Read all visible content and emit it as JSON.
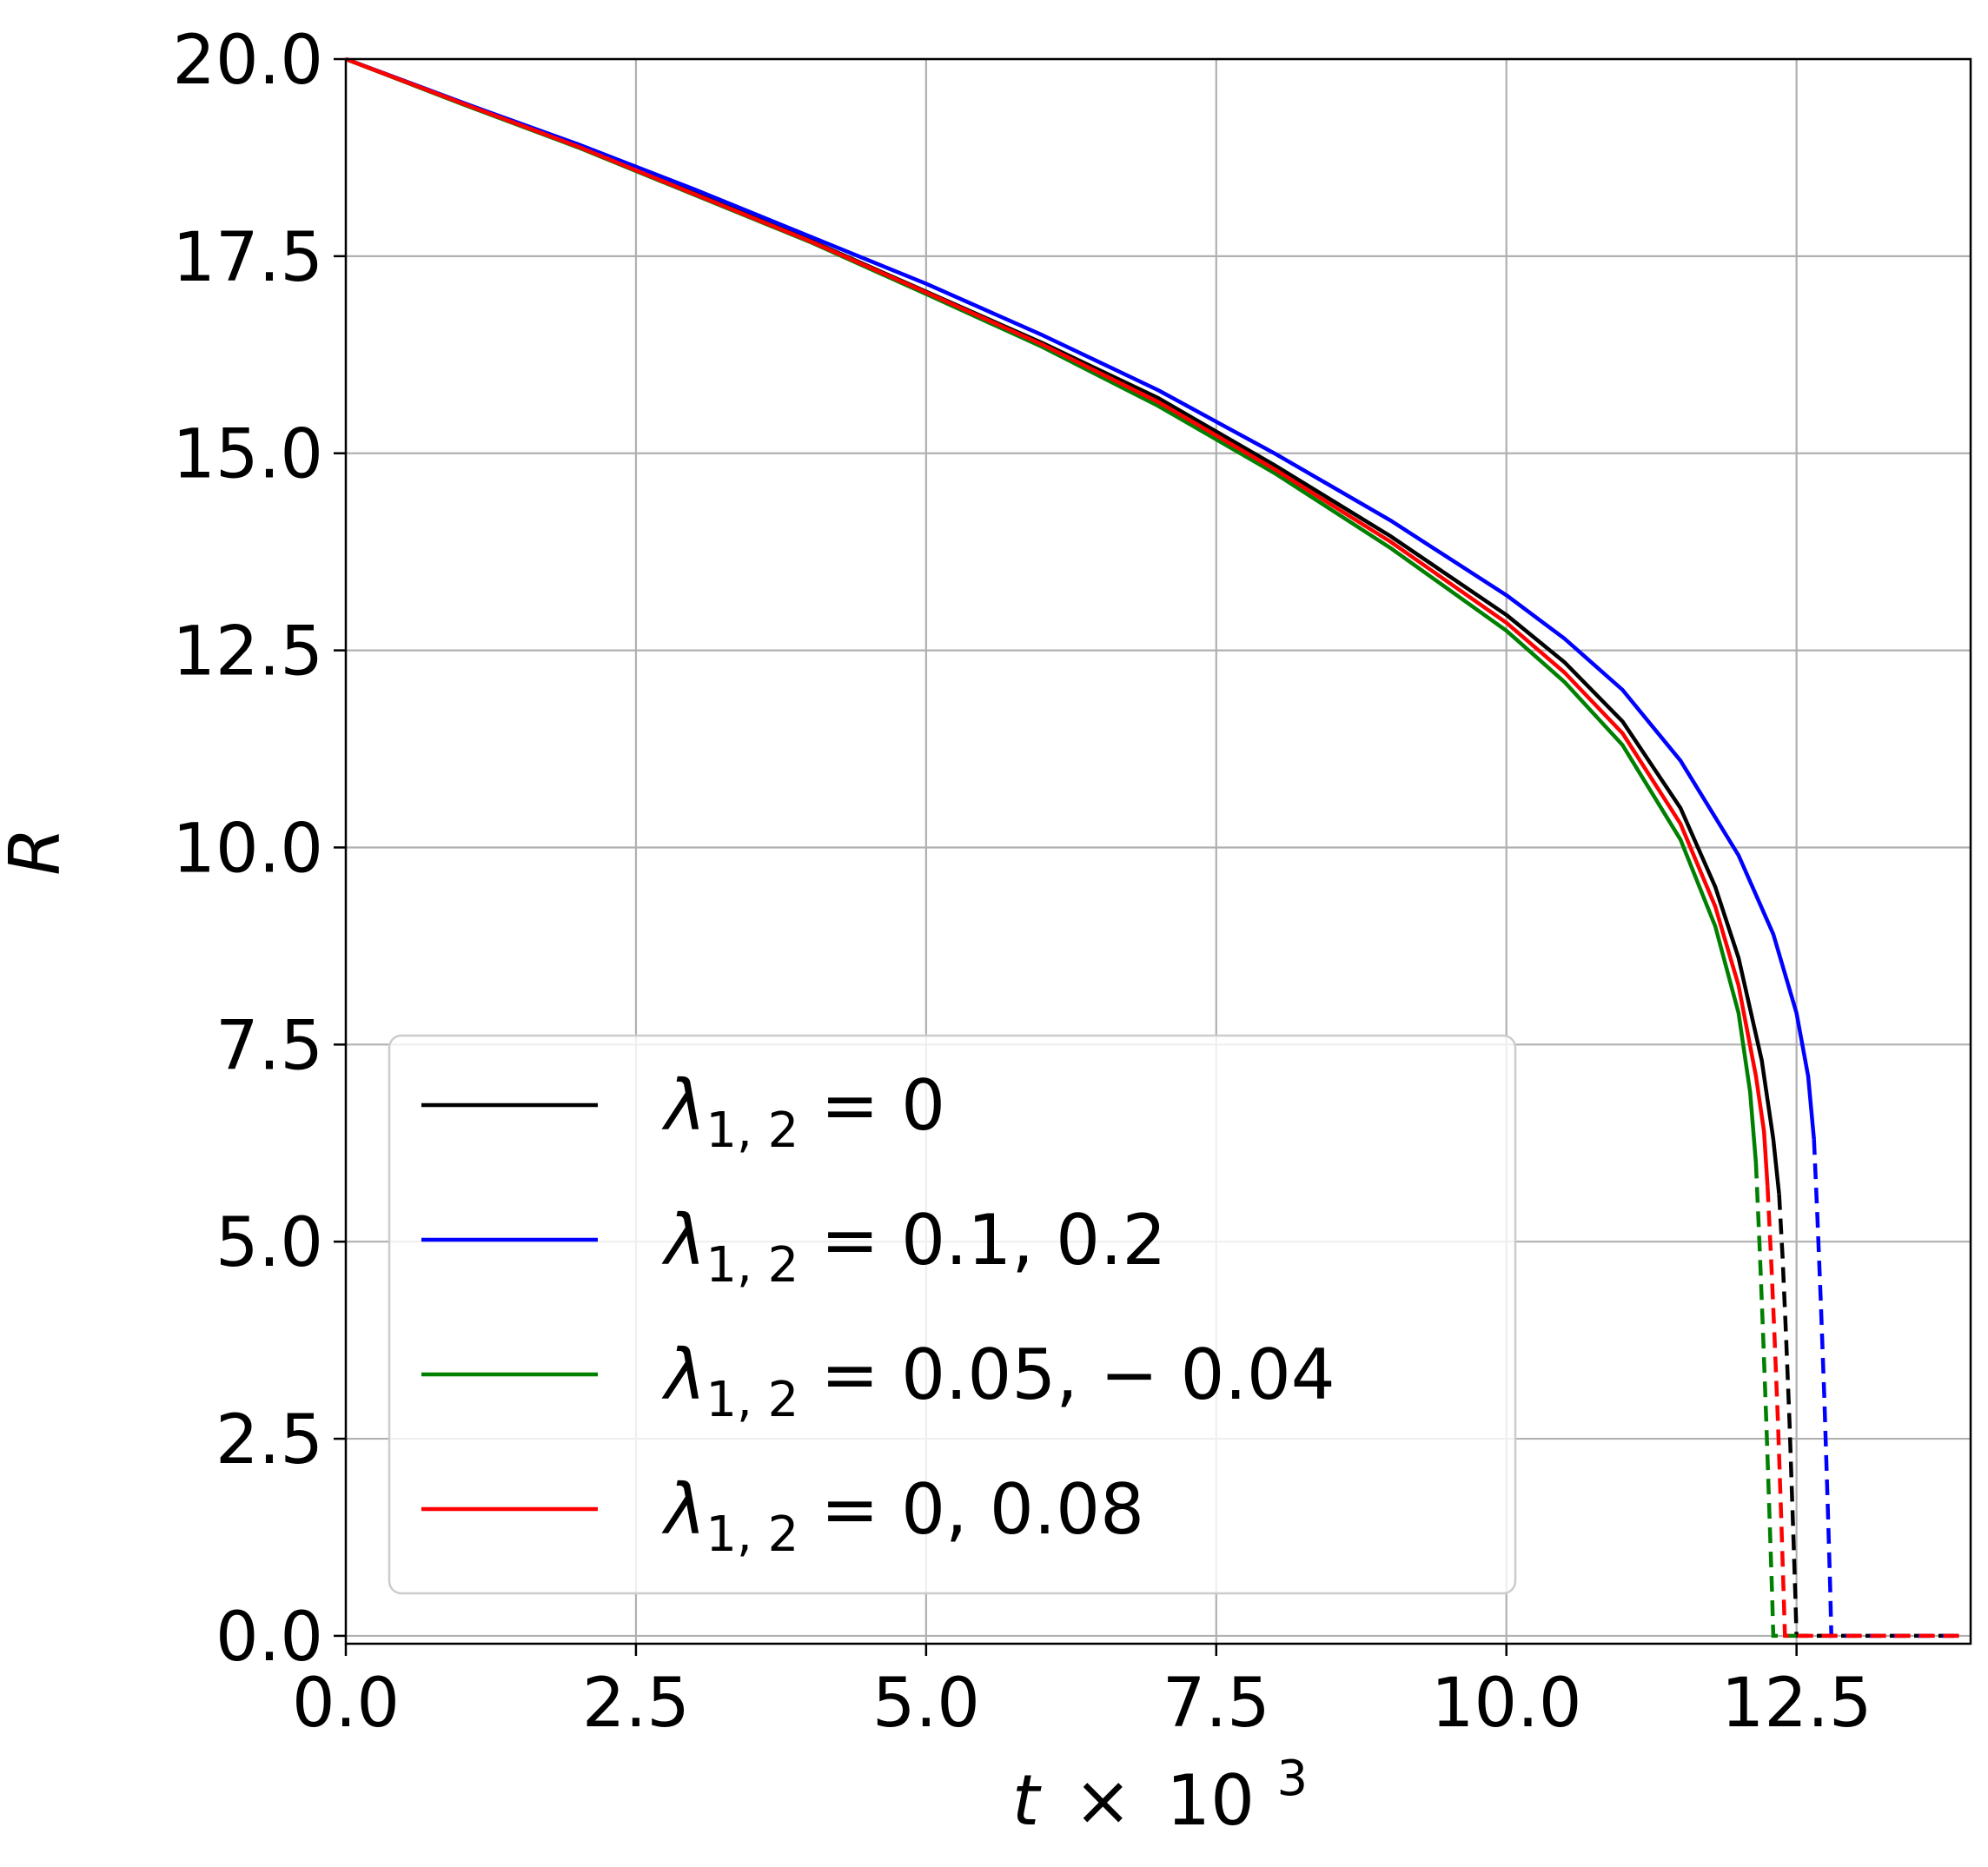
{
  "chart_data": {
    "type": "line",
    "xlabel": {
      "var": "t",
      "op": "×",
      "base": "10",
      "exp": "3"
    },
    "ylabel": "R",
    "xlim": [
      0,
      14
    ],
    "ylim": [
      -0.1,
      20
    ],
    "xticks": [
      "0.0",
      "2.5",
      "5.0",
      "7.5",
      "10.0",
      "12.5"
    ],
    "xtick_values": [
      0,
      2.5,
      5,
      7.5,
      10,
      12.5
    ],
    "yticks": [
      "0.0",
      "2.5",
      "5.0",
      "7.5",
      "10.0",
      "12.5",
      "15.0",
      "17.5",
      "20.0"
    ],
    "ytick_values": [
      0,
      2.5,
      5,
      7.5,
      10,
      12.5,
      15,
      17.5,
      20
    ],
    "grid": true,
    "legend_position": "lower-left",
    "series": [
      {
        "label": {
          "sym": "λ",
          "sub": "1, 2",
          "rhs": " = 0"
        },
        "color": "#000000",
        "solid_x": [
          0,
          1,
          2,
          3,
          4,
          5,
          6,
          7,
          8,
          9,
          10,
          10.5,
          11,
          11.5,
          11.8,
          12.0,
          12.2,
          12.3,
          12.35
        ],
        "solid_y": [
          20,
          19.45,
          18.9,
          18.3,
          17.7,
          17.05,
          16.4,
          15.7,
          14.85,
          13.95,
          12.95,
          12.35,
          11.6,
          10.5,
          9.5,
          8.6,
          7.3,
          6.3,
          5.6
        ],
        "dashed_x": [
          12.35,
          12.38,
          12.41,
          12.44,
          12.47,
          12.49,
          12.5,
          13.9
        ],
        "dashed_y": [
          5.6,
          4.8,
          3.8,
          2.7,
          1.4,
          0.5,
          0,
          0
        ]
      },
      {
        "label": {
          "sym": "λ",
          "sub": "1, 2",
          "rhs": " = 0.1, 0.2"
        },
        "color": "#0000ff",
        "solid_x": [
          0,
          1,
          2,
          3,
          4,
          5,
          6,
          7,
          8,
          9,
          10,
          10.5,
          11,
          11.5,
          12.0,
          12.3,
          12.5,
          12.6,
          12.65
        ],
        "solid_y": [
          20,
          19.45,
          18.92,
          18.35,
          17.75,
          17.15,
          16.5,
          15.8,
          15.0,
          14.15,
          13.2,
          12.65,
          12.0,
          11.1,
          9.9,
          8.9,
          7.9,
          7.1,
          6.3
        ],
        "dashed_x": [
          12.65,
          12.68,
          12.71,
          12.74,
          12.77,
          12.79,
          12.8,
          13.9
        ],
        "dashed_y": [
          6.3,
          5.3,
          4.2,
          3.0,
          1.6,
          0.6,
          0,
          0
        ]
      },
      {
        "label": {
          "sym": "λ",
          "sub": "1, 2",
          "rhs": " = 0.05, − 0.04"
        },
        "color": "#008000",
        "solid_x": [
          0,
          1,
          2,
          3,
          4,
          5,
          6,
          7,
          8,
          9,
          10,
          10.5,
          11,
          11.5,
          11.8,
          12.0,
          12.1,
          12.15
        ],
        "solid_y": [
          20,
          19.43,
          18.88,
          18.28,
          17.68,
          17.02,
          16.35,
          15.6,
          14.75,
          13.8,
          12.75,
          12.1,
          11.3,
          10.1,
          9.0,
          7.9,
          6.9,
          6.0
        ],
        "dashed_x": [
          12.15,
          12.18,
          12.21,
          12.24,
          12.27,
          12.29,
          12.3,
          12.5
        ],
        "dashed_y": [
          6.0,
          5.0,
          3.9,
          2.7,
          1.4,
          0.5,
          0,
          0
        ]
      },
      {
        "label": {
          "sym": "λ",
          "sub": "1, 2",
          "rhs": " = 0, 0.08"
        },
        "color": "#ff0000",
        "solid_x": [
          0,
          1,
          2,
          3,
          4,
          5,
          6,
          7,
          8,
          9,
          10,
          10.5,
          11,
          11.5,
          11.8,
          12.0,
          12.15,
          12.22,
          12.25
        ],
        "solid_y": [
          20,
          19.44,
          18.89,
          18.29,
          17.69,
          17.04,
          16.38,
          15.65,
          14.8,
          13.88,
          12.85,
          12.22,
          11.45,
          10.3,
          9.25,
          8.25,
          7.1,
          6.4,
          5.7
        ],
        "dashed_x": [
          12.25,
          12.28,
          12.31,
          12.34,
          12.37,
          12.39,
          12.4,
          13.9
        ],
        "dashed_y": [
          5.7,
          4.8,
          3.8,
          2.7,
          1.4,
          0.5,
          0,
          0
        ]
      }
    ]
  }
}
